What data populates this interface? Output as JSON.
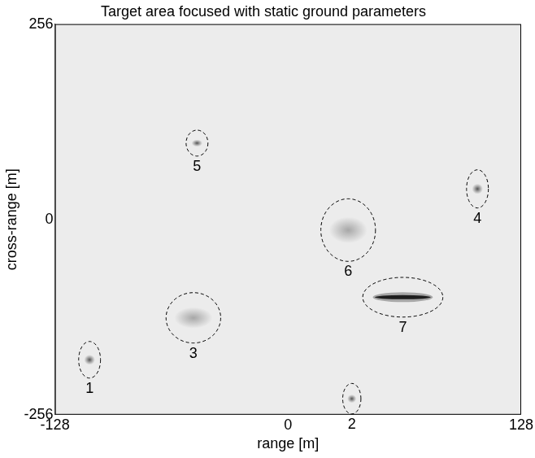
{
  "chart_data": {
    "type": "scatter",
    "title": "Target area focused with static ground parameters",
    "x_label": "range [m]",
    "y_label": "cross-range [m]",
    "xlim": [
      -128,
      128
    ],
    "xticks": [
      -128,
      0,
      128
    ],
    "ylim": [
      -256,
      256
    ],
    "yticks": [
      -256,
      0,
      256
    ],
    "grid": false,
    "targets": [
      {
        "label": "1",
        "x": -109,
        "y": -184,
        "rx": 6,
        "ry": 24,
        "marker": "dot"
      },
      {
        "label": "2",
        "x": 35,
        "y": -235,
        "rx": 5,
        "ry": 20,
        "marker": "dot"
      },
      {
        "label": "3",
        "x": -52,
        "y": -129,
        "rx": 15,
        "ry": 33,
        "marker": "diffuse"
      },
      {
        "label": "4",
        "x": 104,
        "y": 40,
        "rx": 6,
        "ry": 25,
        "marker": "dot"
      },
      {
        "label": "5",
        "x": -50,
        "y": 100,
        "rx": 6,
        "ry": 17,
        "marker": "dot"
      },
      {
        "label": "6",
        "x": 33,
        "y": -14,
        "rx": 15,
        "ry": 41,
        "marker": "diffuse"
      },
      {
        "label": "7",
        "x": 63,
        "y": -102,
        "rx": 22,
        "ry": 26,
        "marker": "line"
      }
    ]
  }
}
